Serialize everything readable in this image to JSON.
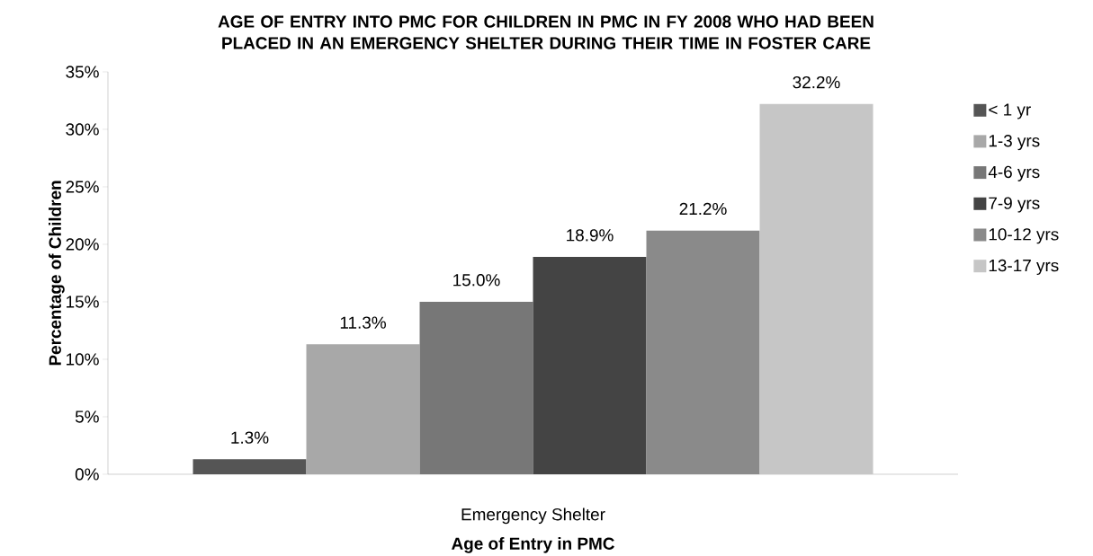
{
  "chart_data": {
    "type": "bar",
    "title": "AGE OF ENTRY INTO PMC FOR CHILDREN IN PMC IN FY 2008 WHO HAD BEEN PLACED IN AN EMERGENCY SHELTER DURING THEIR TIME IN FOSTER CARE",
    "xlabel": "Age of Entry in PMC",
    "ylabel": "Percentage of Children",
    "categories": [
      "Emergency Shelter"
    ],
    "series": [
      {
        "name": "< 1 yr",
        "color": "#555555",
        "values": [
          1.3
        ],
        "value_labels": [
          "1.3%"
        ]
      },
      {
        "name": "1-3 yrs",
        "color": "#a8a8a8",
        "values": [
          11.3
        ],
        "value_labels": [
          "11.3%"
        ]
      },
      {
        "name": "4-6 yrs",
        "color": "#777777",
        "values": [
          15.0
        ],
        "value_labels": [
          "15.0%"
        ]
      },
      {
        "name": "7-9 yrs",
        "color": "#444444",
        "values": [
          18.9
        ],
        "value_labels": [
          "18.9%"
        ]
      },
      {
        "name": "10-12 yrs",
        "color": "#8a8a8a",
        "values": [
          21.2
        ],
        "value_labels": [
          "21.2%"
        ]
      },
      {
        "name": "13-17 yrs",
        "color": "#c6c6c6",
        "values": [
          32.2
        ],
        "value_labels": [
          "32.2%"
        ]
      }
    ],
    "ylim": [
      0,
      35
    ],
    "yticks": [
      {
        "value": 0,
        "label": "0%"
      },
      {
        "value": 5,
        "label": "5%"
      },
      {
        "value": 10,
        "label": "10%"
      },
      {
        "value": 15,
        "label": "15%"
      },
      {
        "value": 20,
        "label": "20%"
      },
      {
        "value": 25,
        "label": "25%"
      },
      {
        "value": 30,
        "label": "30%"
      },
      {
        "value": 35,
        "label": "35%"
      }
    ],
    "grid": false,
    "legend": "right"
  }
}
